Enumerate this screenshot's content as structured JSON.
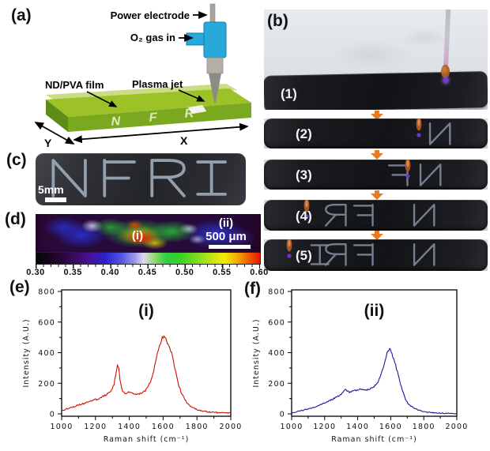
{
  "panels": {
    "a": {
      "label": "(a)",
      "power_electrode_label": "Power electrode",
      "gas_in_label": "O₂ gas in",
      "film_label": "ND/PVA film",
      "plasma_jet_label": "Plasma jet",
      "film_letters": [
        "N",
        "F",
        "R"
      ],
      "axis_x": "X",
      "axis_y": "Y"
    },
    "b": {
      "label": "(b)",
      "frames": [
        {
          "label": "(1)",
          "letters": ""
        },
        {
          "label": "(2)",
          "letters": "N"
        },
        {
          "label": "(3)",
          "letters": "NF"
        },
        {
          "label": "(4)",
          "letters": "NFR"
        },
        {
          "label": "(5)",
          "letters": "NFRI"
        }
      ]
    },
    "c": {
      "label": "(c)",
      "written_text": "NFRI",
      "scale_label": "5mm"
    },
    "d": {
      "label": "(d)",
      "region_i_label": "(i)",
      "region_ii_label": "(ii)",
      "scale_label": "500 μm",
      "colorbar_tick_labels": [
        "0.30",
        "0.35",
        "0.40",
        "0.45",
        "0.50",
        "0.55",
        "0.60"
      ]
    },
    "e": {
      "label": "(e)"
    },
    "f": {
      "label": "(f)"
    }
  },
  "colors": {
    "arrow_orange": "#e87a22",
    "series_red": "#cc1100",
    "series_blue": "#1a1a99",
    "device_blue": "#29a9da",
    "film_green": "#9cc227",
    "plasma_purple": "#7a35d6"
  },
  "chart_data": [
    {
      "id": "e",
      "type": "line",
      "inner_label": "(i)",
      "xlabel": "Raman shift (cm⁻¹)",
      "ylabel": "Intensity (A.U.)",
      "xlim": [
        1000,
        2000
      ],
      "ylim": [
        0,
        800
      ],
      "xticks": [
        1000,
        1200,
        1400,
        1600,
        1800,
        2000
      ],
      "yticks": [
        0,
        200,
        400,
        600,
        800
      ],
      "color": "#cc1100",
      "points": [
        [
          1000,
          20
        ],
        [
          1020,
          28
        ],
        [
          1040,
          36
        ],
        [
          1060,
          44
        ],
        [
          1080,
          50
        ],
        [
          1100,
          58
        ],
        [
          1120,
          64
        ],
        [
          1140,
          70
        ],
        [
          1160,
          78
        ],
        [
          1180,
          85
        ],
        [
          1200,
          93
        ],
        [
          1220,
          100
        ],
        [
          1240,
          110
        ],
        [
          1260,
          122
        ],
        [
          1280,
          138
        ],
        [
          1300,
          165
        ],
        [
          1310,
          195
        ],
        [
          1320,
          255
        ],
        [
          1330,
          318
        ],
        [
          1338,
          295
        ],
        [
          1345,
          230
        ],
        [
          1355,
          165
        ],
        [
          1365,
          140
        ],
        [
          1380,
          130
        ],
        [
          1395,
          140
        ],
        [
          1410,
          138
        ],
        [
          1425,
          132
        ],
        [
          1440,
          126
        ],
        [
          1455,
          128
        ],
        [
          1470,
          134
        ],
        [
          1485,
          142
        ],
        [
          1500,
          158
        ],
        [
          1515,
          185
        ],
        [
          1530,
          225
        ],
        [
          1545,
          285
        ],
        [
          1560,
          360
        ],
        [
          1575,
          430
        ],
        [
          1590,
          480
        ],
        [
          1600,
          508
        ],
        [
          1610,
          498
        ],
        [
          1620,
          478
        ],
        [
          1635,
          448
        ],
        [
          1650,
          395
        ],
        [
          1665,
          320
        ],
        [
          1680,
          240
        ],
        [
          1695,
          178
        ],
        [
          1710,
          132
        ],
        [
          1725,
          100
        ],
        [
          1740,
          75
        ],
        [
          1760,
          52
        ],
        [
          1780,
          38
        ],
        [
          1800,
          28
        ],
        [
          1830,
          20
        ],
        [
          1860,
          14
        ],
        [
          1900,
          10
        ],
        [
          1940,
          8
        ],
        [
          1970,
          6
        ],
        [
          2000,
          5
        ]
      ]
    },
    {
      "id": "f",
      "type": "line",
      "inner_label": "(ii)",
      "xlabel": "Raman shift (cm⁻¹)",
      "ylabel": "Intensity (A.U.)",
      "xlim": [
        1000,
        2000
      ],
      "ylim": [
        0,
        800
      ],
      "xticks": [
        1000,
        1200,
        1400,
        1600,
        1800,
        2000
      ],
      "yticks": [
        0,
        200,
        400,
        600,
        800
      ],
      "color": "#1a1a99",
      "points": [
        [
          1000,
          8
        ],
        [
          1030,
          14
        ],
        [
          1060,
          22
        ],
        [
          1090,
          30
        ],
        [
          1120,
          38
        ],
        [
          1150,
          50
        ],
        [
          1180,
          62
        ],
        [
          1210,
          76
        ],
        [
          1240,
          92
        ],
        [
          1270,
          108
        ],
        [
          1290,
          120
        ],
        [
          1310,
          138
        ],
        [
          1325,
          156
        ],
        [
          1335,
          150
        ],
        [
          1350,
          140
        ],
        [
          1365,
          146
        ],
        [
          1380,
          150
        ],
        [
          1395,
          156
        ],
        [
          1410,
          160
        ],
        [
          1425,
          158
        ],
        [
          1440,
          154
        ],
        [
          1455,
          158
        ],
        [
          1470,
          162
        ],
        [
          1485,
          168
        ],
        [
          1500,
          178
        ],
        [
          1515,
          198
        ],
        [
          1530,
          228
        ],
        [
          1545,
          268
        ],
        [
          1560,
          325
        ],
        [
          1572,
          375
        ],
        [
          1582,
          410
        ],
        [
          1590,
          425
        ],
        [
          1598,
          418
        ],
        [
          1608,
          392
        ],
        [
          1618,
          358
        ],
        [
          1630,
          312
        ],
        [
          1645,
          255
        ],
        [
          1660,
          195
        ],
        [
          1675,
          138
        ],
        [
          1690,
          95
        ],
        [
          1705,
          68
        ],
        [
          1720,
          52
        ],
        [
          1740,
          38
        ],
        [
          1760,
          28
        ],
        [
          1780,
          20
        ],
        [
          1800,
          14
        ],
        [
          1840,
          9
        ],
        [
          1880,
          6
        ],
        [
          1920,
          4
        ],
        [
          1960,
          3
        ],
        [
          2000,
          2
        ]
      ]
    }
  ]
}
